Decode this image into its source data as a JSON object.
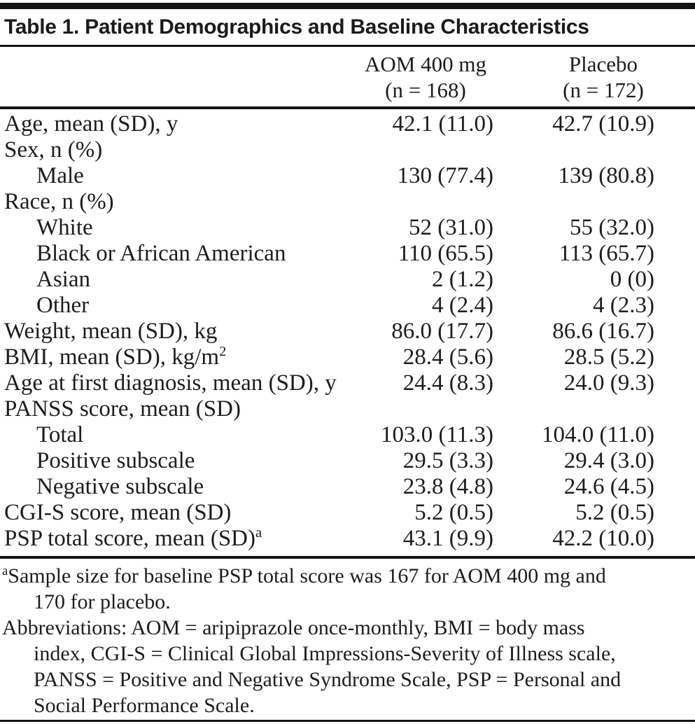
{
  "table": {
    "title": "Table 1. Patient Demographics and Baseline Characteristics",
    "columns": [
      {
        "line1": "AOM 400 mg",
        "line2": "(n = 168)"
      },
      {
        "line1": "Placebo",
        "line2": "(n = 172)"
      }
    ],
    "rows": [
      {
        "label": "Age, mean (SD), y",
        "indent": false,
        "aom": "42.1 (11.0)",
        "placebo": "42.7 (10.9)"
      },
      {
        "label": "Sex, n (%)",
        "indent": false,
        "aom": "",
        "placebo": ""
      },
      {
        "label": "Male",
        "indent": true,
        "aom": "130 (77.4)",
        "placebo": "139 (80.8)"
      },
      {
        "label": "Race, n (%)",
        "indent": false,
        "aom": "",
        "placebo": ""
      },
      {
        "label": "White",
        "indent": true,
        "aom": "52 (31.0)",
        "placebo": "55 (32.0)"
      },
      {
        "label": "Black or African American",
        "indent": true,
        "aom": "110 (65.5)",
        "placebo": "113 (65.7)"
      },
      {
        "label": "Asian",
        "indent": true,
        "aom": "2 (1.2)",
        "placebo": "0 (0)"
      },
      {
        "label": "Other",
        "indent": true,
        "aom": "4 (2.4)",
        "placebo": "4 (2.3)"
      },
      {
        "label": "Weight, mean (SD), kg",
        "indent": false,
        "aom": "86.0 (17.7)",
        "placebo": "86.6 (16.7)"
      },
      {
        "label": "BMI, mean (SD), kg/m",
        "sup": "2",
        "indent": false,
        "aom": "28.4 (5.6)",
        "placebo": "28.5 (5.2)"
      },
      {
        "label": "Age at first diagnosis, mean (SD), y",
        "indent": false,
        "aom": "24.4 (8.3)",
        "placebo": "24.0 (9.3)"
      },
      {
        "label": "PANSS score, mean (SD)",
        "indent": false,
        "aom": "",
        "placebo": ""
      },
      {
        "label": "Total",
        "indent": true,
        "aom": "103.0 (11.3)",
        "placebo": "104.0 (11.0)"
      },
      {
        "label": "Positive subscale",
        "indent": true,
        "aom": "29.5 (3.3)",
        "placebo": "29.4 (3.0)"
      },
      {
        "label": "Negative subscale",
        "indent": true,
        "aom": "23.8 (4.8)",
        "placebo": "24.6 (4.5)"
      },
      {
        "label": "CGI-S score, mean (SD)",
        "indent": false,
        "aom": "5.2 (0.5)",
        "placebo": "5.2 (0.5)"
      },
      {
        "label": "PSP total score, mean (SD)",
        "sup": "a",
        "indent": false,
        "aom": "43.1 (9.9)",
        "placebo": "42.2 (10.0)"
      }
    ],
    "footnote_lines": [
      {
        "sup": "a",
        "text": "Sample size for baseline PSP total score was 167 for AOM 400 mg and",
        "cont": false
      },
      {
        "text": "170 for placebo.",
        "cont": true
      },
      {
        "text": "Abbreviations: AOM = aripiprazole once-monthly, BMI = body mass",
        "cont": false
      },
      {
        "text": "index, CGI-S = Clinical Global Impressions-Severity of Illness scale,",
        "cont": true
      },
      {
        "text": "PANSS = Positive and Negative Syndrome Scale, PSP = Personal and",
        "cont": true
      },
      {
        "text": "Social Performance Scale.",
        "cont": true
      }
    ],
    "colors": {
      "text": "#1d1d1d",
      "rule": "#141414",
      "background": "#ffffff"
    }
  }
}
